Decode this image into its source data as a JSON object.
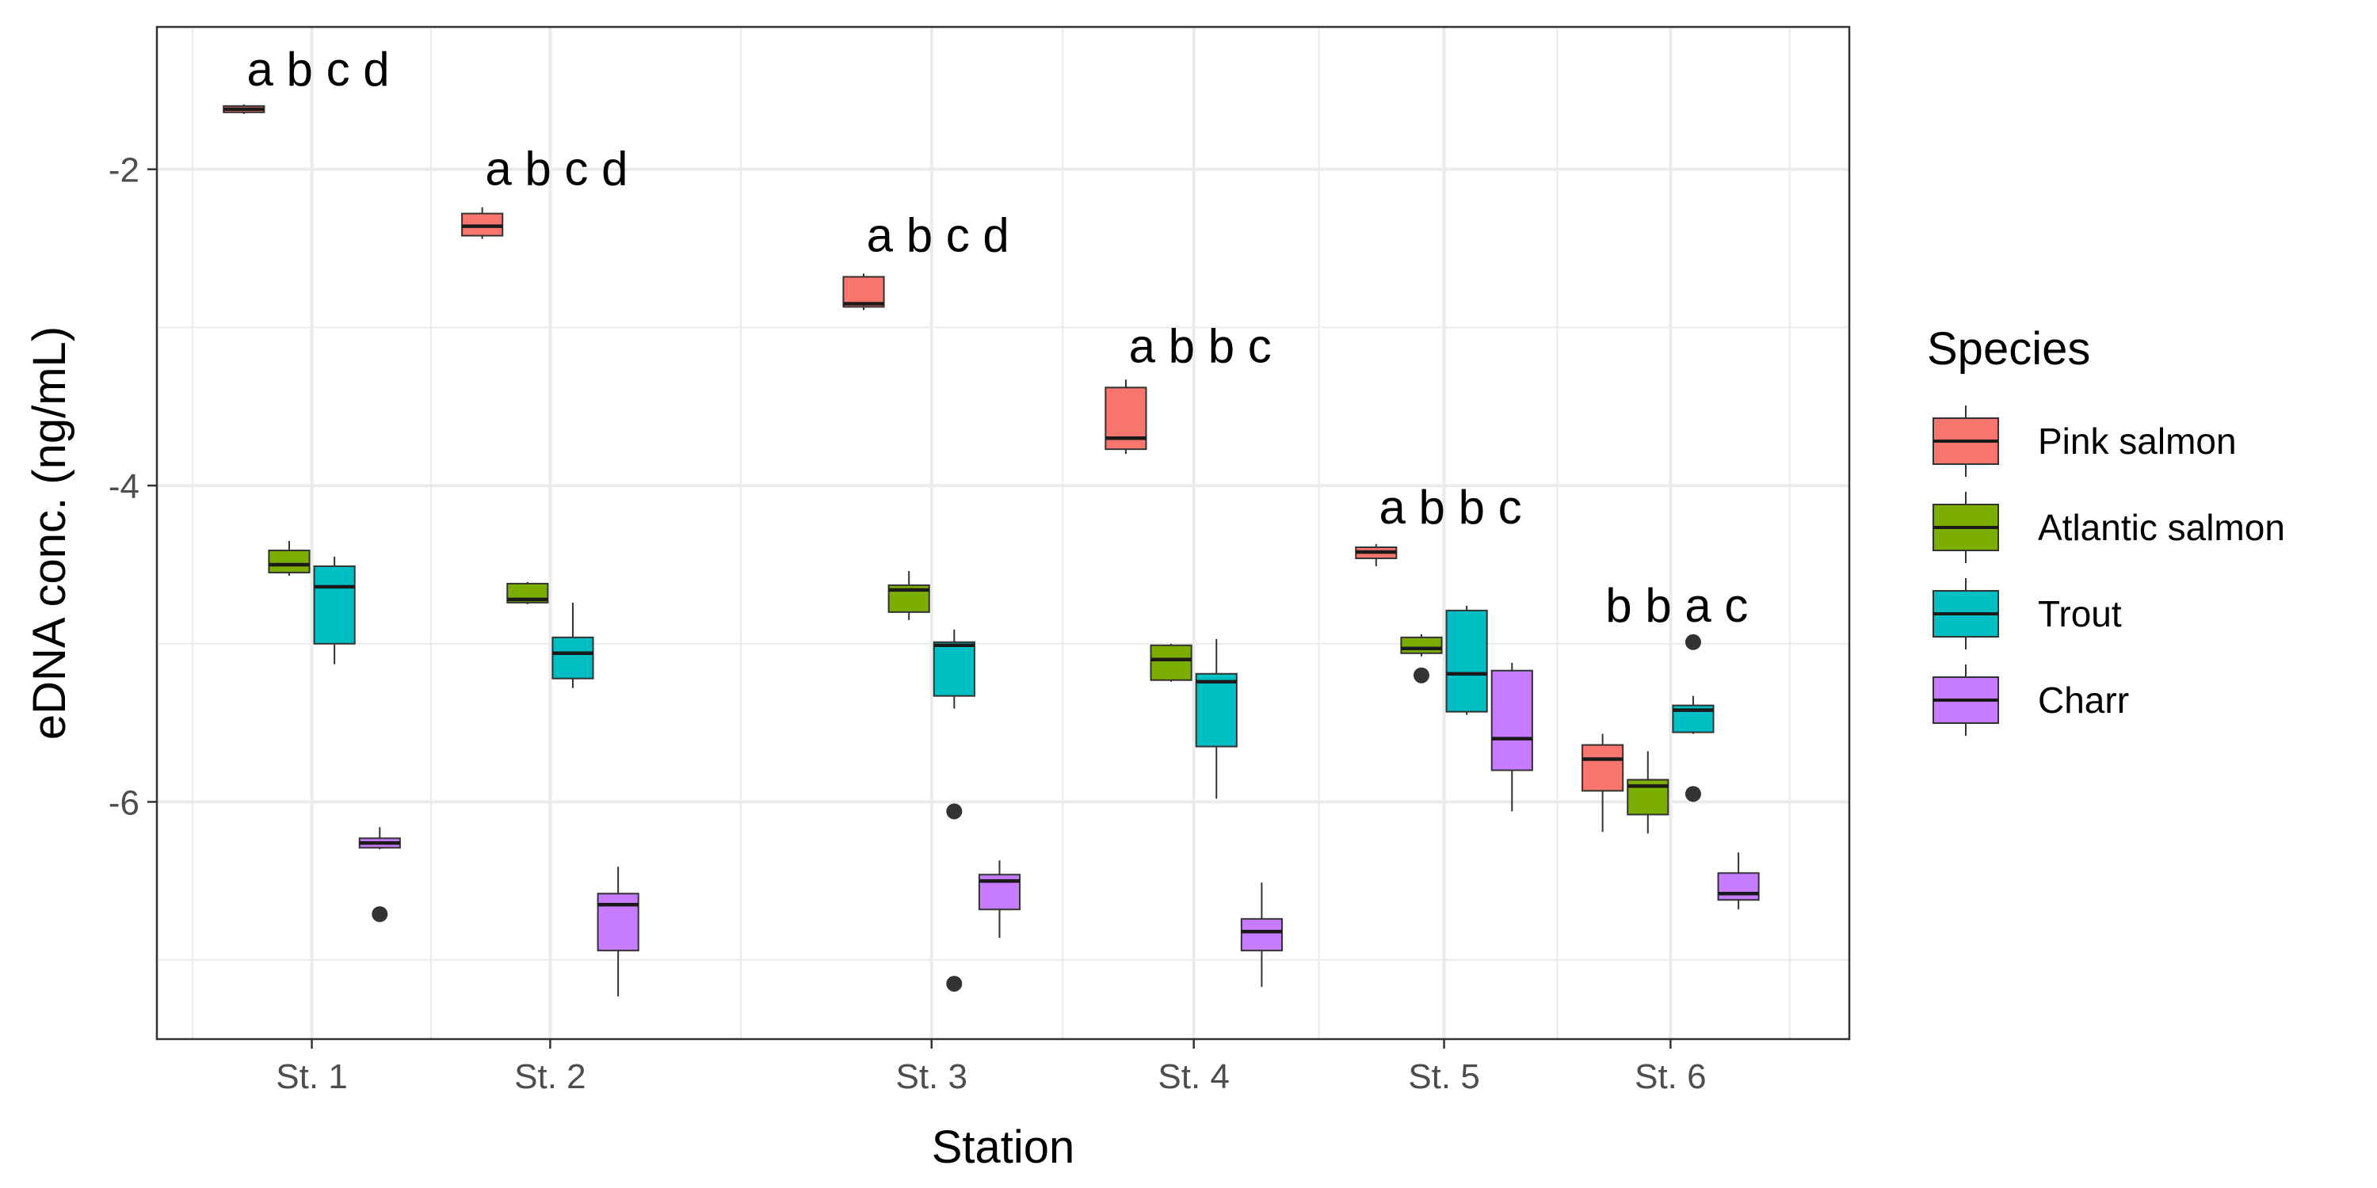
{
  "chart_data": {
    "type": "boxplot",
    "xlabel": "Station",
    "ylabel": "eDNA conc. (ng/mL)",
    "ylim": [
      -7.5,
      -1.1
    ],
    "yticks": [
      -2,
      -4,
      -6
    ],
    "ytick_labels": [
      "-2",
      "-4",
      "-6"
    ],
    "grid": true,
    "legend": {
      "title": "Species",
      "position": "right"
    },
    "colors": {
      "Pink salmon": "#F8766D",
      "Atlantic salmon": "#7CAE00",
      "Trout": "#00BFC4",
      "Charr": "#C77CFF"
    },
    "categories": [
      {
        "label": "St. 1",
        "x": 1.0
      },
      {
        "label": "St. 2",
        "x": 2.0
      },
      {
        "label": "St. 3",
        "x": 3.6
      },
      {
        "label": "St. 4",
        "x": 4.7
      },
      {
        "label": "St. 5",
        "x": 5.75
      },
      {
        "label": "St. 6",
        "x": 6.7
      }
    ],
    "series": [
      {
        "name": "Pink salmon",
        "boxes": [
          {
            "whisker_low": -1.65,
            "q1": -1.64,
            "median": -1.62,
            "q3": -1.6,
            "whisker_high": -1.59,
            "outliers": []
          },
          {
            "whisker_low": -2.44,
            "q1": -2.42,
            "median": -2.36,
            "q3": -2.28,
            "whisker_high": -2.24,
            "outliers": []
          },
          {
            "whisker_low": -2.89,
            "q1": -2.87,
            "median": -2.85,
            "q3": -2.68,
            "whisker_high": -2.66,
            "outliers": []
          },
          {
            "whisker_low": -3.8,
            "q1": -3.77,
            "median": -3.7,
            "q3": -3.38,
            "whisker_high": -3.33,
            "outliers": []
          },
          {
            "whisker_low": -4.51,
            "q1": -4.46,
            "median": -4.42,
            "q3": -4.39,
            "whisker_high": -4.37,
            "outliers": []
          },
          {
            "whisker_low": -6.19,
            "q1": -5.93,
            "median": -5.73,
            "q3": -5.64,
            "whisker_high": -5.57,
            "outliers": []
          }
        ]
      },
      {
        "name": "Atlantic salmon",
        "boxes": [
          {
            "whisker_low": -4.57,
            "q1": -4.55,
            "median": -4.5,
            "q3": -4.41,
            "whisker_high": -4.35,
            "outliers": []
          },
          {
            "whisker_low": -4.75,
            "q1": -4.74,
            "median": -4.72,
            "q3": -4.62,
            "whisker_high": -4.61,
            "outliers": []
          },
          {
            "whisker_low": -4.85,
            "q1": -4.8,
            "median": -4.66,
            "q3": -4.63,
            "whisker_high": -4.54,
            "outliers": []
          },
          {
            "whisker_low": -5.24,
            "q1": -5.23,
            "median": -5.1,
            "q3": -5.01,
            "whisker_high": -5.0,
            "outliers": []
          },
          {
            "whisker_low": -5.08,
            "q1": -5.06,
            "median": -5.03,
            "q3": -4.96,
            "whisker_high": -4.94,
            "outliers": [
              -5.2
            ]
          },
          {
            "whisker_low": -6.2,
            "q1": -6.08,
            "median": -5.9,
            "q3": -5.86,
            "whisker_high": -5.68,
            "outliers": []
          }
        ]
      },
      {
        "name": "Trout",
        "boxes": [
          {
            "whisker_low": -5.13,
            "q1": -5.0,
            "median": -4.64,
            "q3": -4.51,
            "whisker_high": -4.45,
            "outliers": []
          },
          {
            "whisker_low": -5.28,
            "q1": -5.22,
            "median": -5.06,
            "q3": -4.96,
            "whisker_high": -4.74,
            "outliers": []
          },
          {
            "whisker_low": -5.41,
            "q1": -5.33,
            "median": -5.01,
            "q3": -4.99,
            "whisker_high": -4.91,
            "outliers": [
              -6.06,
              -7.15
            ]
          },
          {
            "whisker_low": -5.98,
            "q1": -5.65,
            "median": -5.24,
            "q3": -5.19,
            "whisker_high": -4.97,
            "outliers": []
          },
          {
            "whisker_low": -5.45,
            "q1": -5.43,
            "median": -5.19,
            "q3": -4.79,
            "whisker_high": -4.76,
            "outliers": []
          },
          {
            "whisker_low": -5.57,
            "q1": -5.56,
            "median": -5.42,
            "q3": -5.39,
            "whisker_high": -5.33,
            "outliers": [
              -4.99,
              -5.95
            ]
          }
        ]
      },
      {
        "name": "Charr",
        "boxes": [
          {
            "whisker_low": -6.3,
            "q1": -6.29,
            "median": -6.26,
            "q3": -6.23,
            "whisker_high": -6.16,
            "outliers": [
              -6.71
            ]
          },
          {
            "whisker_low": -7.23,
            "q1": -6.94,
            "median": -6.65,
            "q3": -6.58,
            "whisker_high": -6.41,
            "outliers": []
          },
          {
            "whisker_low": -6.86,
            "q1": -6.68,
            "median": -6.5,
            "q3": -6.46,
            "whisker_high": -6.37,
            "outliers": []
          },
          {
            "whisker_low": -7.17,
            "q1": -6.94,
            "median": -6.82,
            "q3": -6.74,
            "whisker_high": -6.51,
            "outliers": []
          },
          {
            "whisker_low": -6.06,
            "q1": -5.8,
            "median": -5.6,
            "q3": -5.17,
            "whisker_high": -5.12,
            "outliers": []
          },
          {
            "whisker_low": -6.68,
            "q1": -6.62,
            "median": -6.58,
            "q3": -6.45,
            "whisker_high": -6.32,
            "outliers": []
          }
        ]
      }
    ],
    "annotations": [
      {
        "text": "a b c d",
        "x": 1.0,
        "y": -1.37
      },
      {
        "text": "a b c d",
        "x": 2.0,
        "y": -2.0
      },
      {
        "text": "a b c d",
        "x": 3.6,
        "y": -2.42
      },
      {
        "text": "a b b c",
        "x": 4.7,
        "y": -3.12
      },
      {
        "text": "a b b c",
        "x": 5.75,
        "y": -4.14
      },
      {
        "text": "b b a c",
        "x": 6.7,
        "y": -4.76
      }
    ]
  }
}
